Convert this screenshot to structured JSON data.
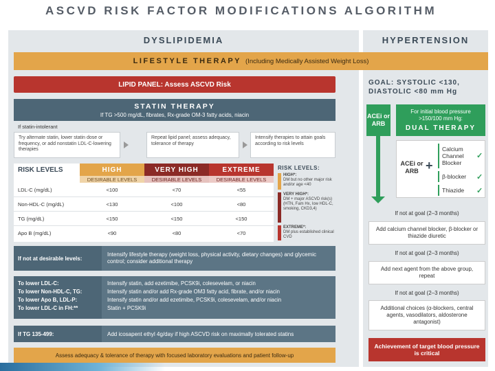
{
  "title": "ASCVD RISK FACTOR MODIFICATIONS ALGORITHM",
  "dyslipidemia": {
    "header": "DYSLIPIDEMIA",
    "lifestyle": {
      "title": "LIFESTYLE THERAPY",
      "subtitle": "(Including Medically Assisted Weight Loss)"
    },
    "lipid_panel": "LIPID PANEL: Assess ASCVD Risk",
    "statin": {
      "title": "STATIN THERAPY",
      "subtitle": "If TG >500 mg/dL, fibrates, Rx-grade OM-3 fatty acids, niacin"
    },
    "statin_intolerant": "If statin-intolerant",
    "boxes": [
      "Try alternate statin, lower statin dose or frequency, or add nonstatin LDL-C-lowering therapies",
      "Repeat lipid panel; assess adequacy, tolerance of therapy",
      "Intensify therapies to attain goals according to risk levels"
    ],
    "risk_table": {
      "title": "RISK LEVELS",
      "columns": [
        "HIGH",
        "VERY HIGH",
        "EXTREME"
      ],
      "subheader": "DESIRABLE LEVELS",
      "rows": [
        {
          "label": "LDL-C (mg/dL)",
          "values": [
            "<100",
            "<70",
            "<55"
          ]
        },
        {
          "label": "Non-HDL-C (mg/dL)",
          "values": [
            "<130",
            "<100",
            "<80"
          ]
        },
        {
          "label": "TG (mg/dL)",
          "values": [
            "<150",
            "<150",
            "<150"
          ]
        },
        {
          "label": "Apo B (mg/dL)",
          "values": [
            "<90",
            "<80",
            "<70"
          ]
        }
      ]
    },
    "risk_levels_key": {
      "title": "RISK LEVELS:",
      "items": [
        {
          "heading": "HIGH*:",
          "text": "DM but no other major risk and/or age <40"
        },
        {
          "heading": "VERY HIGH*:",
          "text": "DM + major ASCVD risk(s) (HTN, Fam Hx, low HDL-C, smoking, CKD3,4)"
        },
        {
          "heading": "EXTREME*:",
          "text": "DM plus established clinical CVD"
        }
      ]
    },
    "not_desirable": {
      "label": "If not at desirable levels:",
      "text": "Intensify lifestyle therapy (weight loss, physical activity, dietary changes) and glycemic control; consider additional therapy"
    },
    "lower_rows": [
      {
        "label": "To lower LDL-C:",
        "text": "Intensify statin, add ezetimibe, PCSK9i, colesevelam, or niacin"
      },
      {
        "label": "To lower Non-HDL-C, TG:",
        "text": "Intensify statin and/or add Rx-grade OM3 fatty acid, fibrate, and/or niacin"
      },
      {
        "label": "To lower Apo B, LDL-P:",
        "text": "Intensify statin and/or add ezetimibe, PCSK9i, colesevelam, and/or niacin"
      },
      {
        "label": "To lower LDL-C in FH:**",
        "text": "Statin + PCSK9i"
      }
    ],
    "tg_row": {
      "label": "If TG 135-499:",
      "text": "Add icosapent ethyl 4g/day if high ASCVD risk on maximally tolerated statins"
    },
    "bottom": "Assess adequacy & tolerance of therapy with focused laboratory evaluations and patient follow-up"
  },
  "hypertension": {
    "header": "HYPERTENSION",
    "goal": "GOAL: SYSTOLIC <130, DIASTOLIC <80 mm Hg",
    "acei_arb": "ACEi or ARB",
    "initial_bp": "For initial blood pressure >150/100 mm Hg:",
    "dual": "DUAL THERAPY",
    "acei_arb2": "ACEi or ARB",
    "plus": "+",
    "options": [
      "Calcium Channel Blocker",
      "β-blocker",
      "Thiazide"
    ],
    "check": "✓",
    "steps": [
      {
        "goal": "If not at goal (2–3 months)",
        "box": "Add calcium channel blocker, β-blocker or thiazide diuretic"
      },
      {
        "goal": "If not at goal (2–3 months)",
        "box": "Add next agent from the above group, repeat"
      },
      {
        "goal": "If not at goal (2–3 months)",
        "box": "Additional choices (α-blockers, central agents, vasodilators, aldosterone antagonist)"
      }
    ],
    "achievement": "Achievement of target blood pressure is critical"
  }
}
